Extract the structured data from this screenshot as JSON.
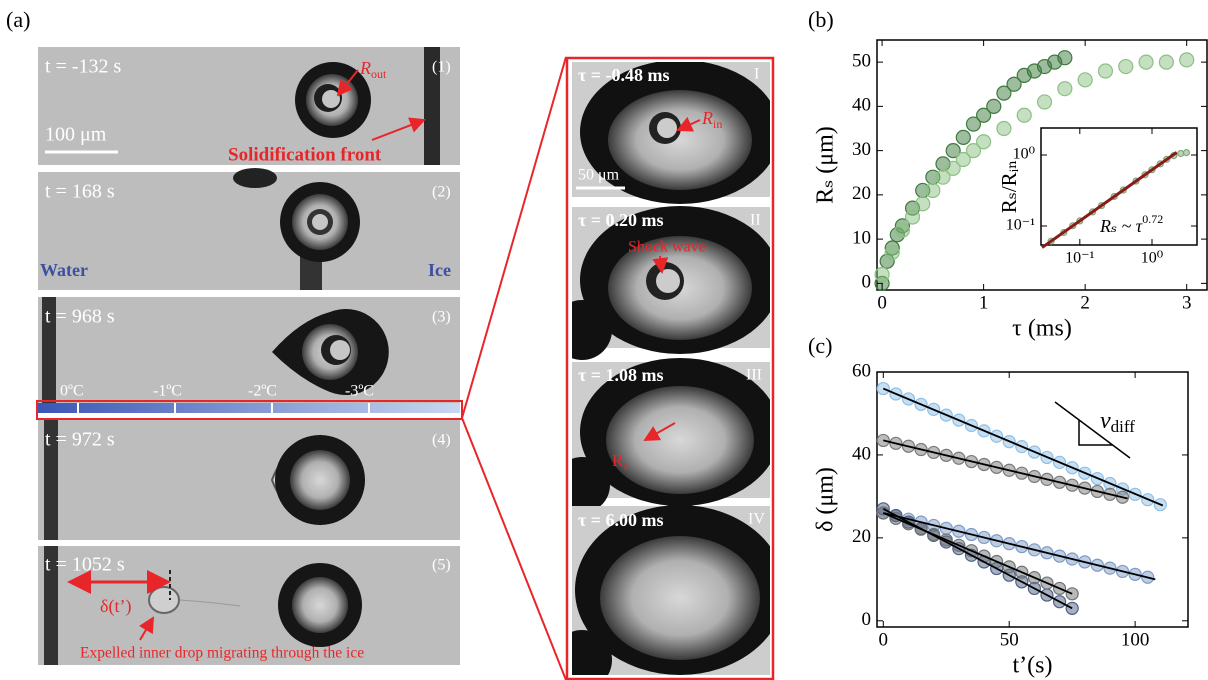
{
  "panel_a": {
    "label": "(a)",
    "frames": [
      {
        "time": "t = -132 s",
        "index": "(1)"
      },
      {
        "time": "t = 168 s",
        "index": "(2)"
      },
      {
        "time": "t = 968 s",
        "index": "(3)"
      },
      {
        "time": "t = 972 s",
        "index": "(4)"
      },
      {
        "time": "t = 1052 s",
        "index": "(5)"
      }
    ],
    "r_out": {
      "base": "R",
      "sub": "out"
    },
    "scale_bar": "100 μm",
    "front_label": "Solidification front",
    "water_label": "Water",
    "ice_label": "Ice",
    "temperatures": [
      "0ºC",
      "-1ºC",
      "-2ºC",
      "-3ºC"
    ],
    "delta_label": "δ(t’)",
    "expelled_label": "Expelled inner drop migrating through the ice"
  },
  "zoom": {
    "frames": [
      {
        "time": "τ = -0.48 ms",
        "index": "I"
      },
      {
        "time": "τ = 0.20 ms",
        "index": "II"
      },
      {
        "time": "τ = 1.08 ms",
        "index": "III"
      },
      {
        "time": "τ = 6.00 ms",
        "index": "IV"
      }
    ],
    "r_in": {
      "base": "R",
      "sub": "in"
    },
    "scale_bar": "50 μm",
    "shock_label": "Shock wave",
    "r_s": {
      "base": "R",
      "sub": "s"
    }
  },
  "panel_labels": {
    "b": "(b)",
    "c": "(c)"
  },
  "chart_data": [
    {
      "type": "scatter",
      "xlabel": "τ (ms)",
      "ylabel": "Rₛ (μm)",
      "xlim": [
        -0.05,
        3.2
      ],
      "ylim": [
        -1.5,
        55
      ],
      "xticks": [
        0,
        1,
        2,
        3
      ],
      "yticks": [
        0,
        10,
        20,
        30,
        40,
        50
      ],
      "series": [
        {
          "color": "#3d7a3d",
          "x": [
            0,
            0.05,
            0.1,
            0.15,
            0.2,
            0.3,
            0.4,
            0.5,
            0.6,
            0.7,
            0.8,
            0.9,
            1.0,
            1.1,
            1.2,
            1.3,
            1.4,
            1.5,
            1.6,
            1.7,
            1.8
          ],
          "values": [
            0,
            5,
            8,
            11,
            13,
            17,
            21,
            24,
            27,
            30,
            33,
            36,
            38,
            40,
            43,
            45,
            47,
            48,
            49,
            50,
            51
          ]
        },
        {
          "color": "#8cc084",
          "x": [
            0,
            0.1,
            0.2,
            0.3,
            0.4,
            0.5,
            0.6,
            0.7,
            0.8,
            0.9,
            1.0,
            1.2,
            1.4,
            1.6,
            1.8,
            2.0,
            2.2,
            2.4,
            2.6,
            2.8,
            3.0
          ],
          "values": [
            2,
            7,
            12,
            15,
            18,
            21,
            24,
            26,
            28,
            30,
            32,
            35,
            38,
            41,
            44,
            46,
            48,
            49,
            50,
            50,
            50.5
          ]
        }
      ]
    },
    {
      "type": "scatter",
      "log_scale": true,
      "ylabel": "Rₛ/Rᵢₙ",
      "annotation": "Rₛ ~ τ",
      "annotation_exponent": "0.72",
      "xlim": [
        0.029,
        4.2
      ],
      "ylim": [
        0.054,
        2.4
      ],
      "xticks": [
        {
          "value": 0.1,
          "label": "10⁻¹"
        },
        {
          "value": 1,
          "label": "10⁰"
        }
      ],
      "yticks": [
        {
          "value": 0.1,
          "label": "10⁻¹"
        },
        {
          "value": 1,
          "label": "10⁰"
        }
      ],
      "series": [
        {
          "color": "#7fa87a",
          "x": [
            0.04,
            0.06,
            0.08,
            0.1,
            0.15,
            0.2,
            0.3,
            0.4,
            0.6,
            0.8,
            1,
            1.3,
            1.6,
            2,
            2.5,
            3
          ],
          "values": [
            0.061,
            0.081,
            0.101,
            0.118,
            0.158,
            0.194,
            0.261,
            0.321,
            0.429,
            0.527,
            0.62,
            0.75,
            0.87,
            0.98,
            1.05,
            1.08
          ]
        }
      ],
      "fits": [
        {
          "color": "#8b1a1a",
          "x": [
            0.03,
            2.2
          ],
          "values": [
            0.0497,
            1.09
          ]
        }
      ]
    },
    {
      "type": "scatter",
      "xlabel": "t’(s)",
      "ylabel": "δ (μm)",
      "annotation": "v",
      "annotation_sub": "diff",
      "xlim": [
        -2.5,
        121
      ],
      "ylim": [
        -1.5,
        60
      ],
      "xticks": [
        0,
        50,
        100
      ],
      "yticks": [
        0,
        20,
        40,
        60
      ],
      "series": [
        {
          "color": "#8fbfe6",
          "x": [
            0,
            5,
            10,
            15,
            20,
            25,
            30,
            35,
            40,
            45,
            50,
            55,
            60,
            65,
            70,
            75,
            80,
            85,
            90,
            95,
            100,
            105,
            110
          ],
          "values": [
            56,
            54.7,
            53.5,
            52.2,
            51,
            49.6,
            48.4,
            47.1,
            45.8,
            44.5,
            43.2,
            42,
            40.7,
            39.4,
            38.2,
            36.9,
            35.6,
            34.3,
            33.1,
            31.8,
            30.5,
            29.2,
            28
          ]
        },
        {
          "color": "#7a7a7a",
          "x": [
            0,
            5,
            10,
            15,
            20,
            25,
            30,
            35,
            40,
            45,
            50,
            55,
            60,
            65,
            70,
            75,
            80,
            85,
            90,
            95
          ],
          "values": [
            43.5,
            42.8,
            42.1,
            41.3,
            40.6,
            39.9,
            39.2,
            38.4,
            37.7,
            37,
            36.3,
            35.6,
            34.8,
            34.1,
            33.4,
            32.7,
            32,
            31.2,
            30.5,
            29.8
          ]
        },
        {
          "color": "#7e9cc7",
          "x": [
            0,
            5,
            10,
            15,
            20,
            25,
            30,
            35,
            40,
            45,
            50,
            55,
            60,
            65,
            70,
            75,
            80,
            85,
            90,
            95,
            100,
            105
          ],
          "values": [
            26,
            25.3,
            24.5,
            23.8,
            23,
            22.3,
            21.6,
            20.8,
            20.1,
            19.3,
            18.6,
            17.9,
            17.1,
            16.4,
            15.6,
            14.9,
            14.2,
            13.4,
            12.7,
            11.9,
            11.2,
            10.5
          ]
        },
        {
          "color": "#4d6185",
          "x": [
            0,
            5,
            10,
            15,
            20,
            25,
            30,
            35,
            40,
            45,
            50,
            55,
            60,
            65,
            70,
            75
          ],
          "values": [
            27,
            25.4,
            23.8,
            22.2,
            20.6,
            19,
            17.4,
            15.8,
            14.2,
            12.6,
            11,
            9.4,
            7.8,
            6.2,
            4.6,
            3
          ]
        },
        {
          "color": "#6f7377",
          "x": [
            0,
            5,
            10,
            15,
            20,
            25,
            30,
            35,
            40,
            45,
            50,
            55,
            60,
            65,
            70,
            75
          ],
          "values": [
            26,
            24.7,
            23.4,
            22.1,
            20.8,
            19.5,
            18.2,
            16.9,
            15.6,
            14.3,
            13,
            11.7,
            10.4,
            9.1,
            7.8,
            6.5
          ]
        }
      ],
      "fits": [
        {
          "color": "#000000",
          "x": [
            0,
            111
          ],
          "values": [
            56,
            27.8
          ]
        },
        {
          "color": "#000000",
          "x": [
            0,
            97
          ],
          "values": [
            43.5,
            29.5
          ]
        },
        {
          "color": "#000000",
          "x": [
            0,
            108
          ],
          "values": [
            26,
            10
          ]
        },
        {
          "color": "#000000",
          "x": [
            0,
            75
          ],
          "values": [
            27,
            3
          ]
        },
        {
          "color": "#000000",
          "x": [
            0,
            75
          ],
          "values": [
            26,
            6.5
          ]
        }
      ]
    }
  ]
}
